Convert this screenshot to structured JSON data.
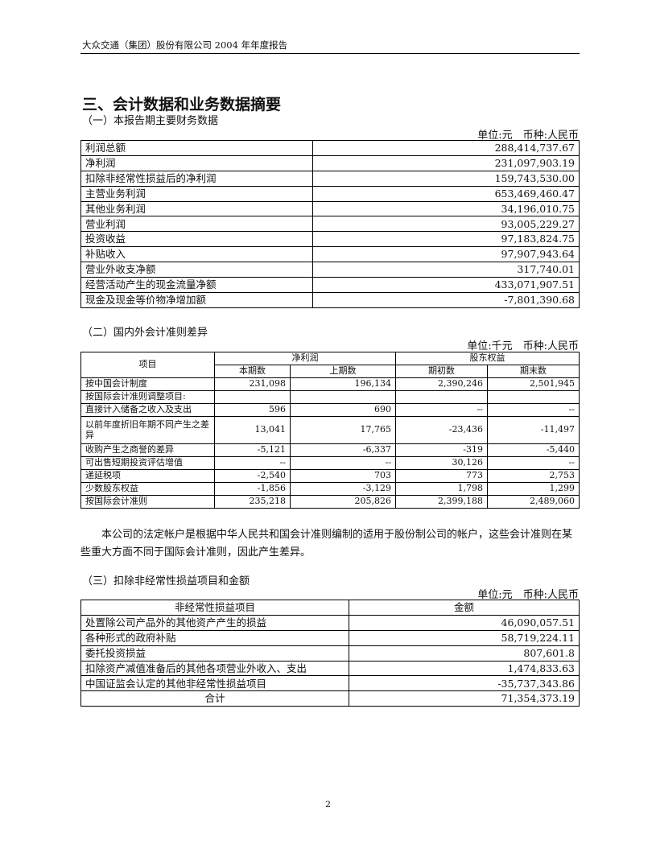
{
  "header": {
    "running_title": "大众交通（集团）股份有限公司 2004 年年度报告"
  },
  "section_title": "三、会计数据和业务数据摘要",
  "part1": {
    "title": "（一）本报告期主要财务数据",
    "unit": "单位:元　币种:人民币",
    "rows": [
      [
        "利润总额",
        "288,414,737.67"
      ],
      [
        "净利润",
        "231,097,903.19"
      ],
      [
        "扣除非经常性损益后的净利润",
        "159,743,530.00"
      ],
      [
        "主营业务利润",
        "653,469,460.47"
      ],
      [
        "其他业务利润",
        "34,196,010.75"
      ],
      [
        "营业利润",
        "93,005,229.27"
      ],
      [
        "投资收益",
        "97,183,824.75"
      ],
      [
        "补贴收入",
        "97,907,943.64"
      ],
      [
        "营业外收支净额",
        "317,740.01"
      ],
      [
        "经营活动产生的现金流量净额",
        "433,071,907.51"
      ],
      [
        "现金及现金等价物净增加额",
        "-7,801,390.68"
      ]
    ]
  },
  "part2": {
    "title": "（二）国内外会计准则差异",
    "unit": "单位:千元　币种:人民币",
    "head": {
      "item": "项目",
      "net_profit": "净利润",
      "equity": "股东权益",
      "cur": "本期数",
      "prev": "上期数",
      "begin": "期初数",
      "end": "期末数"
    },
    "rows": [
      [
        "按中国会计制度",
        "231,098",
        "196,134",
        "2,390,246",
        "2,501,945"
      ],
      [
        "按国际会计准则调整项目:",
        "",
        "",
        "",
        ""
      ],
      [
        "直接计入储备之收入及支出",
        "596",
        "690",
        "--",
        "--"
      ],
      [
        "以前年度折旧年期不同产生之差异",
        "13,041",
        "17,765",
        "-23,436",
        "-11,497"
      ],
      [
        "收购产生之商誉的差异",
        "-5,121",
        "-6,337",
        "-319",
        "-5,440"
      ],
      [
        "可出售短期投资评估增值",
        "--",
        "--",
        "30,126",
        "--"
      ],
      [
        "递延税项",
        "-2,540",
        "703",
        "773",
        "2,753"
      ],
      [
        "少数股东权益",
        "-1,856",
        "-3,129",
        "1,798",
        "1,299"
      ],
      [
        "按国际会计准则",
        "235,218",
        "205,826",
        "2,399,188",
        "2,489,060"
      ]
    ]
  },
  "paragraph": "本公司的法定帐户是根据中华人民共和国会计准则编制的适用于股份制公司的帐户，这些会计准则在某些重大方面不同于国际会计准则，因此产生差异。",
  "part3": {
    "title": "（三）扣除非经常性损益项目和金额",
    "unit": "单位:元　币种:人民币",
    "head": [
      "非经常性损益项目",
      "金额"
    ],
    "rows": [
      [
        "处置除公司产品外的其他资产产生的损益",
        "46,090,057.51"
      ],
      [
        "各种形式的政府补贴",
        "58,719,224.11"
      ],
      [
        "委托投资损益",
        "807,601.8"
      ],
      [
        "扣除资产减值准备后的其他各项营业外收入、支出",
        "1,474,833.63"
      ],
      [
        "中国证监会认定的其他非经常性损益项目",
        "-35,737,343.86"
      ]
    ],
    "total": [
      "合计",
      "71,354,373.19"
    ]
  },
  "page_number": "2"
}
